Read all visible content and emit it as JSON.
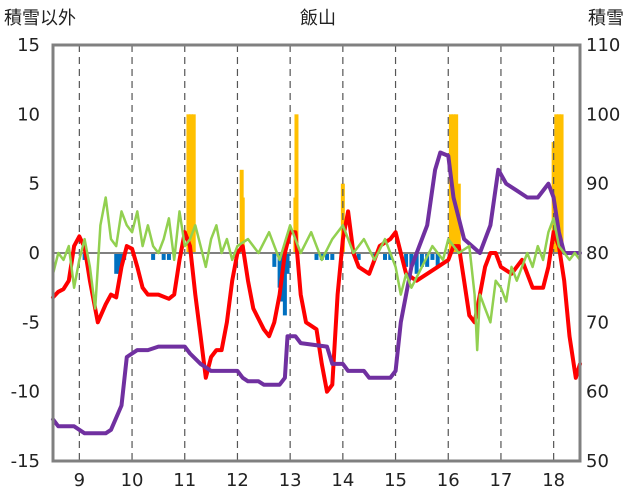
{
  "chart_data": {
    "type": "line",
    "title": "飯山",
    "ylabel_left": "積雪以外",
    "ylabel_right": "積雪",
    "x_ticks": [
      "9",
      "10",
      "11",
      "12",
      "13",
      "14",
      "15",
      "16",
      "17",
      "18"
    ],
    "x_range": [
      8.5,
      18.5
    ],
    "left_axis": {
      "range": [
        -15,
        15
      ],
      "ticks": [
        "15",
        "10",
        "5",
        "0",
        "-5",
        "-10",
        "-15"
      ]
    },
    "right_axis": {
      "range": [
        50,
        110
      ],
      "ticks": [
        "110",
        "100",
        "90",
        "80",
        "70",
        "60",
        "50"
      ]
    },
    "grid": "vertical dashed at each integer x; horizontal zero line",
    "colors": {
      "red": "#ff0000",
      "purple": "#7030a0",
      "green": "#92d050",
      "orange": "#ffc000",
      "blue": "#0070c0",
      "frame": "#808080"
    },
    "series": [
      {
        "color": "red",
        "axis": "left",
        "points": [
          [
            8.5,
            -3.2
          ],
          [
            8.6,
            -2.8
          ],
          [
            8.7,
            -2.6
          ],
          [
            8.8,
            -2.0
          ],
          [
            8.9,
            0.5
          ],
          [
            9.0,
            1.2
          ],
          [
            9.1,
            0.4
          ],
          [
            9.2,
            -2.0
          ],
          [
            9.35,
            -5.0
          ],
          [
            9.5,
            -3.7
          ],
          [
            9.6,
            -3.0
          ],
          [
            9.7,
            -3.2
          ],
          [
            9.8,
            -1.0
          ],
          [
            9.9,
            0.5
          ],
          [
            10.0,
            0.3
          ],
          [
            10.1,
            -1.0
          ],
          [
            10.2,
            -2.5
          ],
          [
            10.3,
            -3.0
          ],
          [
            10.5,
            -3.0
          ],
          [
            10.7,
            -3.3
          ],
          [
            10.8,
            -3.0
          ],
          [
            10.9,
            -0.5
          ],
          [
            11.0,
            1.5
          ],
          [
            11.1,
            0.5
          ],
          [
            11.2,
            -3.0
          ],
          [
            11.3,
            -6.0
          ],
          [
            11.4,
            -9.0
          ],
          [
            11.5,
            -7.5
          ],
          [
            11.6,
            -7.0
          ],
          [
            11.7,
            -7.0
          ],
          [
            11.8,
            -5.0
          ],
          [
            11.9,
            -2.0
          ],
          [
            12.0,
            0.0
          ],
          [
            12.1,
            0.5
          ],
          [
            12.2,
            -2.0
          ],
          [
            12.3,
            -4.0
          ],
          [
            12.5,
            -5.5
          ],
          [
            12.6,
            -6.0
          ],
          [
            12.7,
            -5.0
          ],
          [
            12.8,
            -3.0
          ],
          [
            12.9,
            0.0
          ],
          [
            13.0,
            1.5
          ],
          [
            13.1,
            1.5
          ],
          [
            13.2,
            -3.0
          ],
          [
            13.3,
            -5.0
          ],
          [
            13.5,
            -5.5
          ],
          [
            13.6,
            -8.0
          ],
          [
            13.7,
            -10.0
          ],
          [
            13.8,
            -9.5
          ],
          [
            13.9,
            -3.0
          ],
          [
            14.0,
            1.0
          ],
          [
            14.1,
            3.0
          ],
          [
            14.2,
            0.0
          ],
          [
            14.3,
            -1.0
          ],
          [
            14.5,
            -1.5
          ],
          [
            14.7,
            0.5
          ],
          [
            14.9,
            1.0
          ],
          [
            15.0,
            1.5
          ],
          [
            15.1,
            0.0
          ],
          [
            15.2,
            -1.5
          ],
          [
            15.4,
            -2.0
          ],
          [
            15.6,
            -1.5
          ],
          [
            15.8,
            -1.0
          ],
          [
            16.0,
            -0.5
          ],
          [
            16.1,
            0.5
          ],
          [
            16.2,
            0.5
          ],
          [
            16.3,
            -2.0
          ],
          [
            16.4,
            -4.5
          ],
          [
            16.5,
            -5.0
          ],
          [
            16.6,
            -3.0
          ],
          [
            16.7,
            -1.0
          ],
          [
            16.8,
            0.0
          ],
          [
            16.9,
            0.0
          ],
          [
            17.0,
            -1.0
          ],
          [
            17.2,
            -1.5
          ],
          [
            17.4,
            -0.5
          ],
          [
            17.6,
            -2.5
          ],
          [
            17.8,
            -2.5
          ],
          [
            17.9,
            -1.0
          ],
          [
            18.0,
            1.5
          ],
          [
            18.1,
            0.5
          ],
          [
            18.2,
            -2.0
          ],
          [
            18.3,
            -6.0
          ],
          [
            18.42,
            -9.0
          ],
          [
            18.5,
            -8.0
          ]
        ]
      },
      {
        "color": "purple",
        "axis": "right",
        "points": [
          [
            8.5,
            56
          ],
          [
            8.6,
            55
          ],
          [
            8.9,
            55
          ],
          [
            9.1,
            54
          ],
          [
            9.5,
            54
          ],
          [
            9.6,
            54.5
          ],
          [
            9.8,
            58
          ],
          [
            9.9,
            65
          ],
          [
            10.1,
            66
          ],
          [
            10.3,
            66
          ],
          [
            10.5,
            66.5
          ],
          [
            11.0,
            66.5
          ],
          [
            11.1,
            65.5
          ],
          [
            11.3,
            64
          ],
          [
            11.5,
            63
          ],
          [
            12.0,
            63
          ],
          [
            12.1,
            62
          ],
          [
            12.2,
            61.5
          ],
          [
            12.4,
            61.5
          ],
          [
            12.5,
            61
          ],
          [
            12.8,
            61
          ],
          [
            12.9,
            62
          ],
          [
            12.95,
            68
          ],
          [
            13.1,
            68
          ],
          [
            13.2,
            67
          ],
          [
            13.7,
            66.5
          ],
          [
            13.8,
            64
          ],
          [
            14.0,
            64
          ],
          [
            14.1,
            63
          ],
          [
            14.4,
            63
          ],
          [
            14.5,
            62
          ],
          [
            14.9,
            62
          ],
          [
            15.0,
            63
          ],
          [
            15.1,
            70
          ],
          [
            15.3,
            78
          ],
          [
            15.6,
            84
          ],
          [
            15.75,
            92
          ],
          [
            15.85,
            94.5
          ],
          [
            16.0,
            94
          ],
          [
            16.1,
            88
          ],
          [
            16.3,
            82
          ],
          [
            16.6,
            80
          ],
          [
            16.8,
            84
          ],
          [
            16.95,
            92
          ],
          [
            17.1,
            90
          ],
          [
            17.3,
            89
          ],
          [
            17.5,
            88
          ],
          [
            17.7,
            88
          ],
          [
            17.8,
            89
          ],
          [
            17.9,
            90
          ],
          [
            18.0,
            88
          ],
          [
            18.1,
            83
          ],
          [
            18.2,
            80
          ],
          [
            18.5,
            80
          ]
        ]
      },
      {
        "color": "green",
        "axis": "left",
        "points": [
          [
            8.5,
            -1.5
          ],
          [
            8.6,
            0.0
          ],
          [
            8.7,
            -0.5
          ],
          [
            8.8,
            0.5
          ],
          [
            8.9,
            -2.5
          ],
          [
            9.0,
            -0.5
          ],
          [
            9.1,
            1.0
          ],
          [
            9.2,
            -1.0
          ],
          [
            9.3,
            -4.0
          ],
          [
            9.4,
            2.0
          ],
          [
            9.5,
            4.0
          ],
          [
            9.6,
            1.0
          ],
          [
            9.7,
            0.5
          ],
          [
            9.8,
            3.0
          ],
          [
            9.9,
            2.0
          ],
          [
            10.0,
            1.5
          ],
          [
            10.1,
            3.0
          ],
          [
            10.2,
            0.5
          ],
          [
            10.3,
            2.0
          ],
          [
            10.4,
            0.5
          ],
          [
            10.5,
            0.0
          ],
          [
            10.6,
            1.0
          ],
          [
            10.7,
            2.5
          ],
          [
            10.8,
            -0.5
          ],
          [
            10.9,
            3.0
          ],
          [
            11.0,
            0.5
          ],
          [
            11.1,
            1.0
          ],
          [
            11.2,
            2.0
          ],
          [
            11.3,
            0.5
          ],
          [
            11.4,
            -1.0
          ],
          [
            11.5,
            1.0
          ],
          [
            11.6,
            2.0
          ],
          [
            11.7,
            0.0
          ],
          [
            11.8,
            1.0
          ],
          [
            11.9,
            -0.5
          ],
          [
            12.0,
            0.5
          ],
          [
            12.2,
            1.0
          ],
          [
            12.4,
            0.0
          ],
          [
            12.6,
            1.5
          ],
          [
            12.8,
            -0.5
          ],
          [
            13.0,
            2.0
          ],
          [
            13.2,
            0.0
          ],
          [
            13.4,
            1.5
          ],
          [
            13.6,
            -0.5
          ],
          [
            13.8,
            1.0
          ],
          [
            14.0,
            2.0
          ],
          [
            14.2,
            0.0
          ],
          [
            14.4,
            1.0
          ],
          [
            14.6,
            -0.5
          ],
          [
            14.8,
            1.0
          ],
          [
            15.0,
            -1.0
          ],
          [
            15.1,
            -3.0
          ],
          [
            15.2,
            -1.5
          ],
          [
            15.3,
            -2.5
          ],
          [
            15.5,
            -1.0
          ],
          [
            15.7,
            0.5
          ],
          [
            15.9,
            -0.5
          ],
          [
            16.0,
            1.0
          ],
          [
            16.2,
            0.0
          ],
          [
            16.4,
            0.5
          ],
          [
            16.5,
            -3.0
          ],
          [
            16.55,
            -7.0
          ],
          [
            16.6,
            -3.0
          ],
          [
            16.7,
            -4.0
          ],
          [
            16.8,
            -5.0
          ],
          [
            16.9,
            -2.0
          ],
          [
            17.0,
            -2.5
          ],
          [
            17.1,
            -3.5
          ],
          [
            17.2,
            -1.0
          ],
          [
            17.3,
            -2.0
          ],
          [
            17.4,
            -1.0
          ],
          [
            17.5,
            0.0
          ],
          [
            17.6,
            -1.0
          ],
          [
            17.7,
            0.5
          ],
          [
            17.8,
            -0.5
          ],
          [
            17.9,
            1.5
          ],
          [
            18.0,
            2.5
          ],
          [
            18.1,
            0.5
          ],
          [
            18.2,
            0.0
          ],
          [
            18.3,
            -0.5
          ],
          [
            18.4,
            0.0
          ],
          [
            18.5,
            -0.5
          ]
        ]
      }
    ],
    "bars": [
      {
        "color": "orange",
        "axis": "right",
        "values": [
          [
            11.07,
            100
          ],
          [
            11.12,
            100
          ],
          [
            11.17,
            100
          ],
          [
            12.08,
            92
          ],
          [
            12.1,
            88
          ],
          [
            13.12,
            100
          ],
          [
            13.1,
            88
          ],
          [
            14.0,
            90
          ],
          [
            16.05,
            100
          ],
          [
            16.1,
            100
          ],
          [
            16.15,
            100
          ],
          [
            16.2,
            90
          ],
          [
            18.05,
            100
          ],
          [
            18.1,
            100
          ],
          [
            18.15,
            100
          ],
          [
            18.0,
            96
          ]
        ]
      },
      {
        "color": "blue",
        "axis": "left",
        "values": [
          [
            9.1,
            -0.5
          ],
          [
            9.7,
            -1.5
          ],
          [
            9.75,
            -1.5
          ],
          [
            9.8,
            -1.0
          ],
          [
            9.85,
            -0.5
          ],
          [
            10.4,
            -0.5
          ],
          [
            10.6,
            -0.5
          ],
          [
            10.7,
            -0.5
          ],
          [
            12.7,
            -1.0
          ],
          [
            12.8,
            -2.5
          ],
          [
            12.85,
            -3.5
          ],
          [
            12.9,
            -4.5
          ],
          [
            12.95,
            -1.5
          ],
          [
            13.5,
            -0.5
          ],
          [
            13.6,
            -0.5
          ],
          [
            13.7,
            -0.5
          ],
          [
            13.8,
            -0.5
          ],
          [
            14.3,
            -0.5
          ],
          [
            14.6,
            -0.5
          ],
          [
            14.8,
            -0.5
          ],
          [
            14.9,
            -0.5
          ],
          [
            15.2,
            -1.0
          ],
          [
            15.3,
            -1.0
          ],
          [
            15.4,
            -1.5
          ],
          [
            15.5,
            -1.0
          ],
          [
            15.6,
            -1.0
          ],
          [
            15.7,
            -0.5
          ],
          [
            15.8,
            -1.0
          ]
        ]
      }
    ]
  }
}
